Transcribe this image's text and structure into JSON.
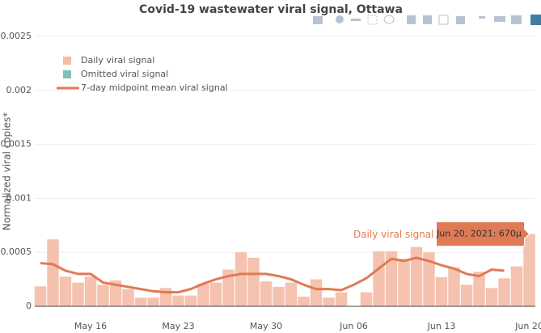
{
  "chart_data": {
    "type": "bar_line",
    "title": "Covid-19 wastewater viral signal, Ottawa",
    "y_label": "Normalized viral copies*",
    "x": [
      "2021-05-12",
      "2021-05-13",
      "2021-05-14",
      "2021-05-15",
      "2021-05-16",
      "2021-05-17",
      "2021-05-18",
      "2021-05-19",
      "2021-05-20",
      "2021-05-21",
      "2021-05-22",
      "2021-05-23",
      "2021-05-24",
      "2021-05-25",
      "2021-05-26",
      "2021-05-27",
      "2021-05-28",
      "2021-05-29",
      "2021-05-30",
      "2021-05-31",
      "2021-06-01",
      "2021-06-02",
      "2021-06-03",
      "2021-06-04",
      "2021-06-05",
      "2021-06-06",
      "2021-06-07",
      "2021-06-08",
      "2021-06-09",
      "2021-06-10",
      "2021-06-11",
      "2021-06-12",
      "2021-06-13",
      "2021-06-14",
      "2021-06-15",
      "2021-06-16",
      "2021-06-17",
      "2021-06-18",
      "2021-06-19",
      "2021-06-20"
    ],
    "xticks": [
      {
        "value": "2021-05-16",
        "label": "May 16"
      },
      {
        "value": "2021-05-23",
        "label": "May 23"
      },
      {
        "value": "2021-05-30",
        "label": "May 30"
      },
      {
        "value": "2021-06-06",
        "label": "Jun 06"
      },
      {
        "value": "2021-06-13",
        "label": "Jun 13"
      },
      {
        "value": "2021-06-20",
        "label": "Jun 20"
      }
    ],
    "ylim": [
      0,
      0.00265
    ],
    "yticks": [
      0,
      0.0005,
      0.001,
      0.0015,
      0.002,
      0.0025
    ],
    "grid": true,
    "legend_position": "top-left",
    "series": [
      {
        "name": "Daily viral signal",
        "kind": "bar",
        "color": "#f4bba6",
        "values": [
          0.000185,
          0.00062,
          0.000275,
          0.00022,
          0.000275,
          0.0002,
          0.00024,
          0.00016,
          8e-05,
          8e-05,
          0.00017,
          0.0001,
          0.0001,
          0.00021,
          0.00022,
          0.00034,
          0.0005,
          0.00045,
          0.00023,
          0.00018,
          0.00022,
          9e-05,
          0.00025,
          8e-05,
          0.00013,
          null,
          0.00013,
          0.00051,
          0.00051,
          0.00044,
          0.00055,
          0.0005,
          0.00027,
          0.00036,
          0.0002,
          0.00032,
          0.00017,
          0.00026,
          0.00037,
          0.00067
        ]
      },
      {
        "name": "Omitted viral signal",
        "kind": "bar",
        "color": "#7fc1b9",
        "values": [
          null,
          null,
          null,
          null,
          null,
          null,
          null,
          null,
          null,
          null,
          null,
          null,
          null,
          null,
          null,
          null,
          null,
          null,
          null,
          null,
          null,
          null,
          null,
          null,
          null,
          null,
          null,
          null,
          null,
          null,
          null,
          null,
          null,
          null,
          null,
          null,
          null,
          null,
          null,
          null
        ]
      },
      {
        "name": "7-day midpoint mean viral signal",
        "kind": "line",
        "color": "#e07a54",
        "values": [
          0.0004,
          0.00039,
          0.00033,
          0.0003,
          0.0003,
          0.00022,
          0.0002,
          0.00018,
          0.00016,
          0.00014,
          0.00013,
          0.00013,
          0.00016,
          0.00021,
          0.00025,
          0.00028,
          0.0003,
          0.0003,
          0.0003,
          0.00028,
          0.00025,
          0.0002,
          0.00016,
          0.00016,
          0.00015,
          0.0002,
          0.00026,
          0.00035,
          0.00044,
          0.00042,
          0.00045,
          0.00042,
          0.00038,
          0.00035,
          0.0003,
          0.00028,
          0.00034,
          0.00033,
          null,
          null
        ]
      }
    ],
    "hover": {
      "series": "Daily viral signal",
      "label": "Jun 20, 2021: 670µ",
      "index": 39
    }
  }
}
